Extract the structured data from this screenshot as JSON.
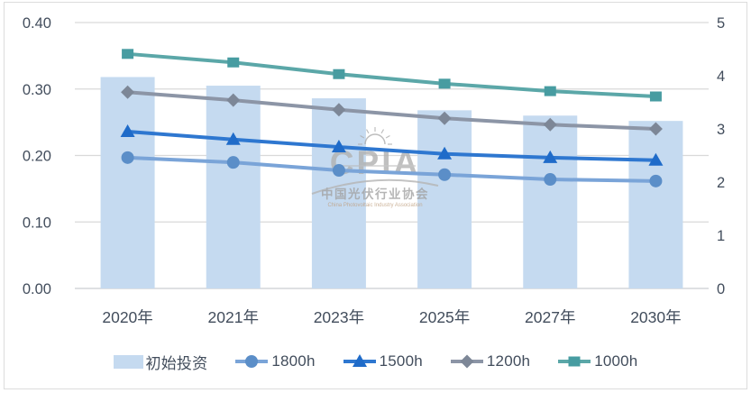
{
  "watermark": {
    "acronym": "CPIA",
    "name_cn": "中国光伏行业协会",
    "name_en": "China Photovoltaic Industry Association"
  },
  "colors": {
    "bar_fill": "#c5daf0",
    "grid_line": "#d9d9d9",
    "baseline": "#c9cdd2",
    "axis_text": "#424d5c",
    "frame_border": "#dcdcdc",
    "watermark_gray": "#aeaeae",
    "watermark_en": "#bf9f7f"
  },
  "chart_data": {
    "type": "combo-bar-line",
    "categories": [
      "2020年",
      "2021年",
      "2023年",
      "2025年",
      "2027年",
      "2030年"
    ],
    "bar_series": {
      "name": "初始投资",
      "axis": "left",
      "color": "#c5daf0",
      "values": [
        0.318,
        0.305,
        0.286,
        0.268,
        0.26,
        0.252
      ]
    },
    "line_series": [
      {
        "name": "1800h",
        "axis": "right",
        "marker": "circle",
        "line_color": "#7aa4d8",
        "marker_color": "#5b8ec8",
        "values": [
          2.46,
          2.37,
          2.22,
          2.14,
          2.05,
          2.02
        ]
      },
      {
        "name": "1500h",
        "axis": "right",
        "marker": "triangle",
        "line_color": "#2e77d0",
        "marker_color": "#1f6bc9",
        "values": [
          2.95,
          2.8,
          2.66,
          2.53,
          2.46,
          2.41
        ]
      },
      {
        "name": "1200h",
        "axis": "right",
        "marker": "diamond",
        "line_color": "#8c95a6",
        "marker_color": "#7d8797",
        "values": [
          3.69,
          3.54,
          3.36,
          3.2,
          3.08,
          3.0
        ]
      },
      {
        "name": "1000h",
        "axis": "right",
        "marker": "square",
        "line_color": "#5ba7a8",
        "marker_color": "#479ca1",
        "values": [
          4.41,
          4.25,
          4.03,
          3.85,
          3.71,
          3.61
        ]
      }
    ],
    "left_axis": {
      "min": 0,
      "max": 0.4,
      "tick_labels": [
        "0.00",
        "0.10",
        "0.20",
        "0.30",
        "0.40"
      ]
    },
    "right_axis": {
      "min": 0,
      "max": 5,
      "tick_labels": [
        "0",
        "1",
        "2",
        "3",
        "4",
        "5"
      ]
    },
    "grid": "horizontal",
    "legend_position": "bottom",
    "title": "",
    "xlabel": "",
    "ylabel": ""
  }
}
